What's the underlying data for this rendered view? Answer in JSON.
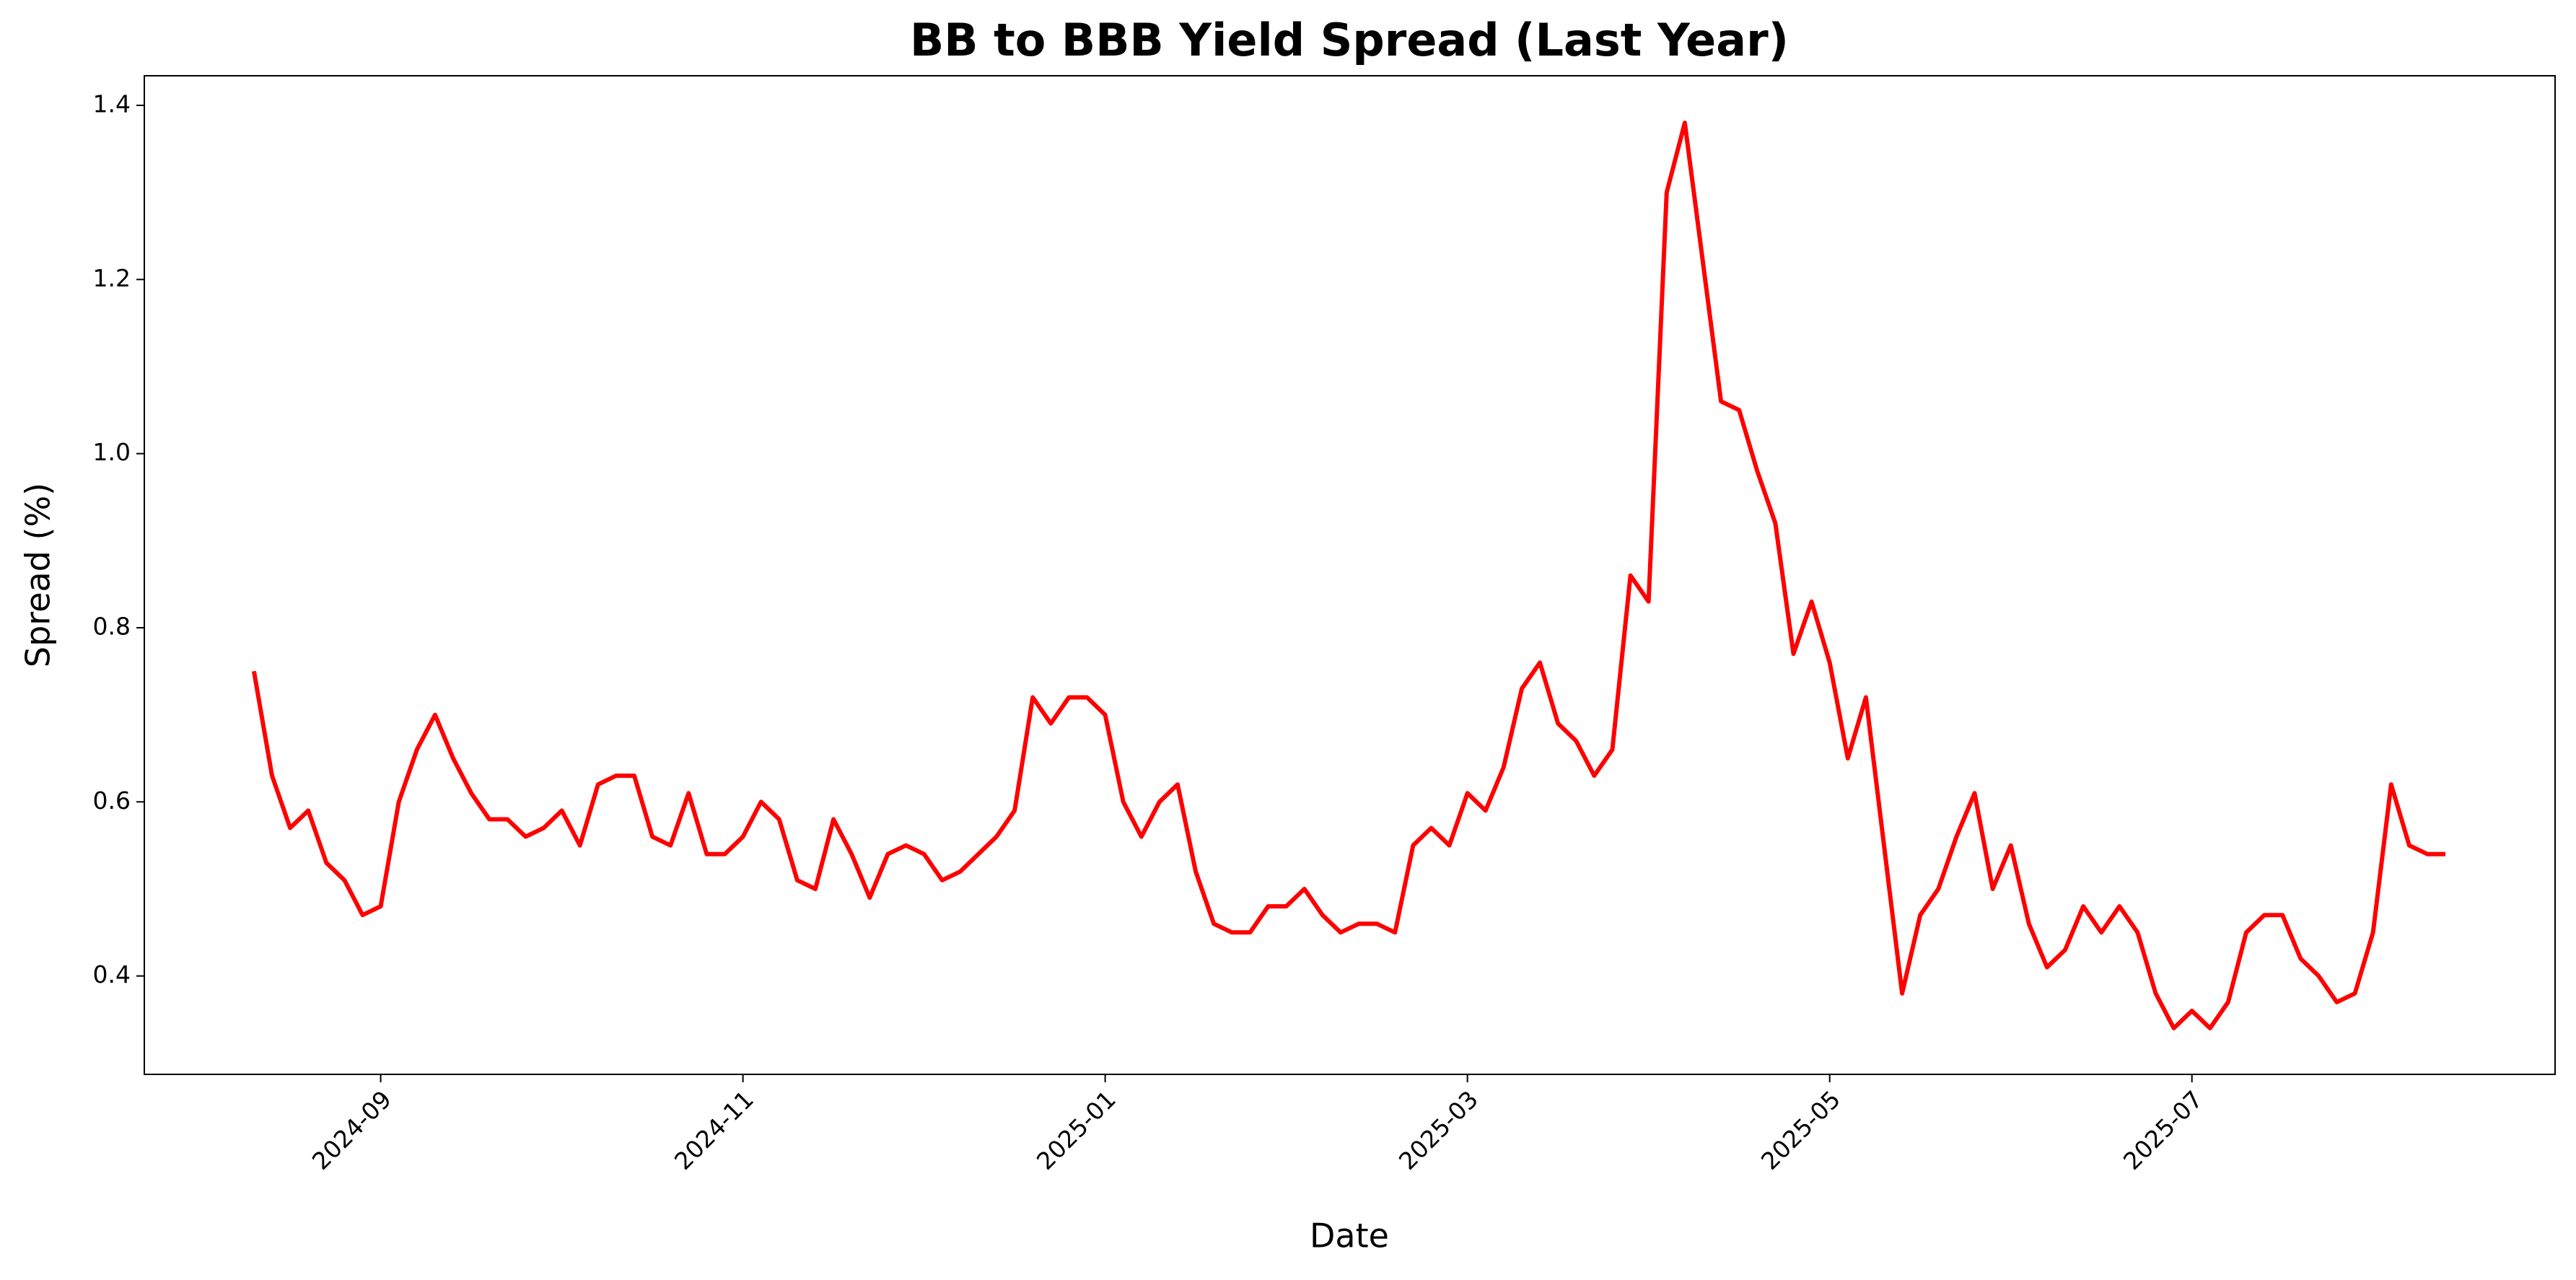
{
  "chart_data": {
    "type": "line",
    "title": "BB to BBB Yield Spread (Last Year)",
    "x_label": "Date",
    "y_label": "Spread (%)",
    "categories": [
      null,
      null,
      null,
      null,
      null,
      null,
      null,
      "2024-09",
      null,
      null,
      null,
      null,
      null,
      null,
      null,
      null,
      null,
      null,
      null,
      null,
      null,
      null,
      null,
      null,
      null,
      null,
      null,
      "2024-11",
      null,
      null,
      null,
      null,
      null,
      null,
      null,
      null,
      null,
      null,
      null,
      null,
      null,
      null,
      null,
      null,
      null,
      null,
      null,
      "2025-01",
      null,
      null,
      null,
      null,
      null,
      null,
      null,
      null,
      null,
      null,
      null,
      null,
      null,
      null,
      null,
      null,
      null,
      null,
      null,
      "2025-03",
      null,
      null,
      null,
      null,
      null,
      null,
      null,
      null,
      null,
      null,
      null,
      null,
      null,
      null,
      null,
      null,
      null,
      null,
      null,
      "2025-05",
      null,
      null,
      null,
      null,
      null,
      null,
      null,
      null,
      null,
      null,
      null,
      null,
      null,
      null,
      null,
      null,
      null,
      null,
      null,
      "2025-07",
      null,
      null,
      null,
      null,
      null,
      null,
      null,
      null,
      null,
      null,
      null,
      null,
      null,
      null
    ],
    "series": [
      {
        "name": "Spread",
        "color": "#ff0000",
        "values": [
          0.75,
          0.63,
          0.57,
          0.59,
          0.53,
          0.51,
          0.47,
          0.48,
          0.6,
          0.66,
          0.7,
          0.65,
          0.61,
          0.58,
          0.58,
          0.56,
          0.57,
          0.59,
          0.55,
          0.62,
          0.63,
          0.63,
          0.56,
          0.55,
          0.61,
          0.54,
          0.54,
          0.56,
          0.6,
          0.58,
          0.51,
          0.5,
          0.58,
          0.54,
          0.49,
          0.54,
          0.55,
          0.54,
          0.51,
          0.52,
          0.54,
          0.56,
          0.59,
          0.72,
          0.69,
          0.72,
          0.72,
          0.7,
          0.6,
          0.56,
          0.6,
          0.62,
          0.52,
          0.46,
          0.45,
          0.45,
          0.48,
          0.48,
          0.5,
          0.47,
          0.45,
          0.46,
          0.46,
          0.45,
          0.55,
          0.57,
          0.55,
          0.61,
          0.59,
          0.64,
          0.73,
          0.76,
          0.69,
          0.67,
          0.63,
          0.66,
          0.86,
          0.83,
          1.3,
          1.38,
          1.22,
          1.06,
          1.05,
          0.98,
          0.92,
          0.77,
          0.83,
          0.76,
          0.65,
          0.72,
          0.55,
          0.38,
          0.47,
          0.5,
          0.56,
          0.61,
          0.5,
          0.55,
          0.46,
          0.41,
          0.43,
          0.48,
          0.45,
          0.48,
          0.45,
          0.38,
          0.34,
          0.36,
          0.34,
          0.37,
          0.45,
          0.47,
          0.47,
          0.42,
          0.4,
          0.37,
          0.38,
          0.45,
          0.62,
          0.55,
          0.54,
          0.54
        ]
      }
    ],
    "ylim": [
      0.287,
      1.434
    ],
    "yticks": [
      0.4,
      0.6,
      0.8,
      {
        "value": 1,
        "label": "1.0"
      },
      1.2,
      1.4
    ],
    "grid": false
  }
}
